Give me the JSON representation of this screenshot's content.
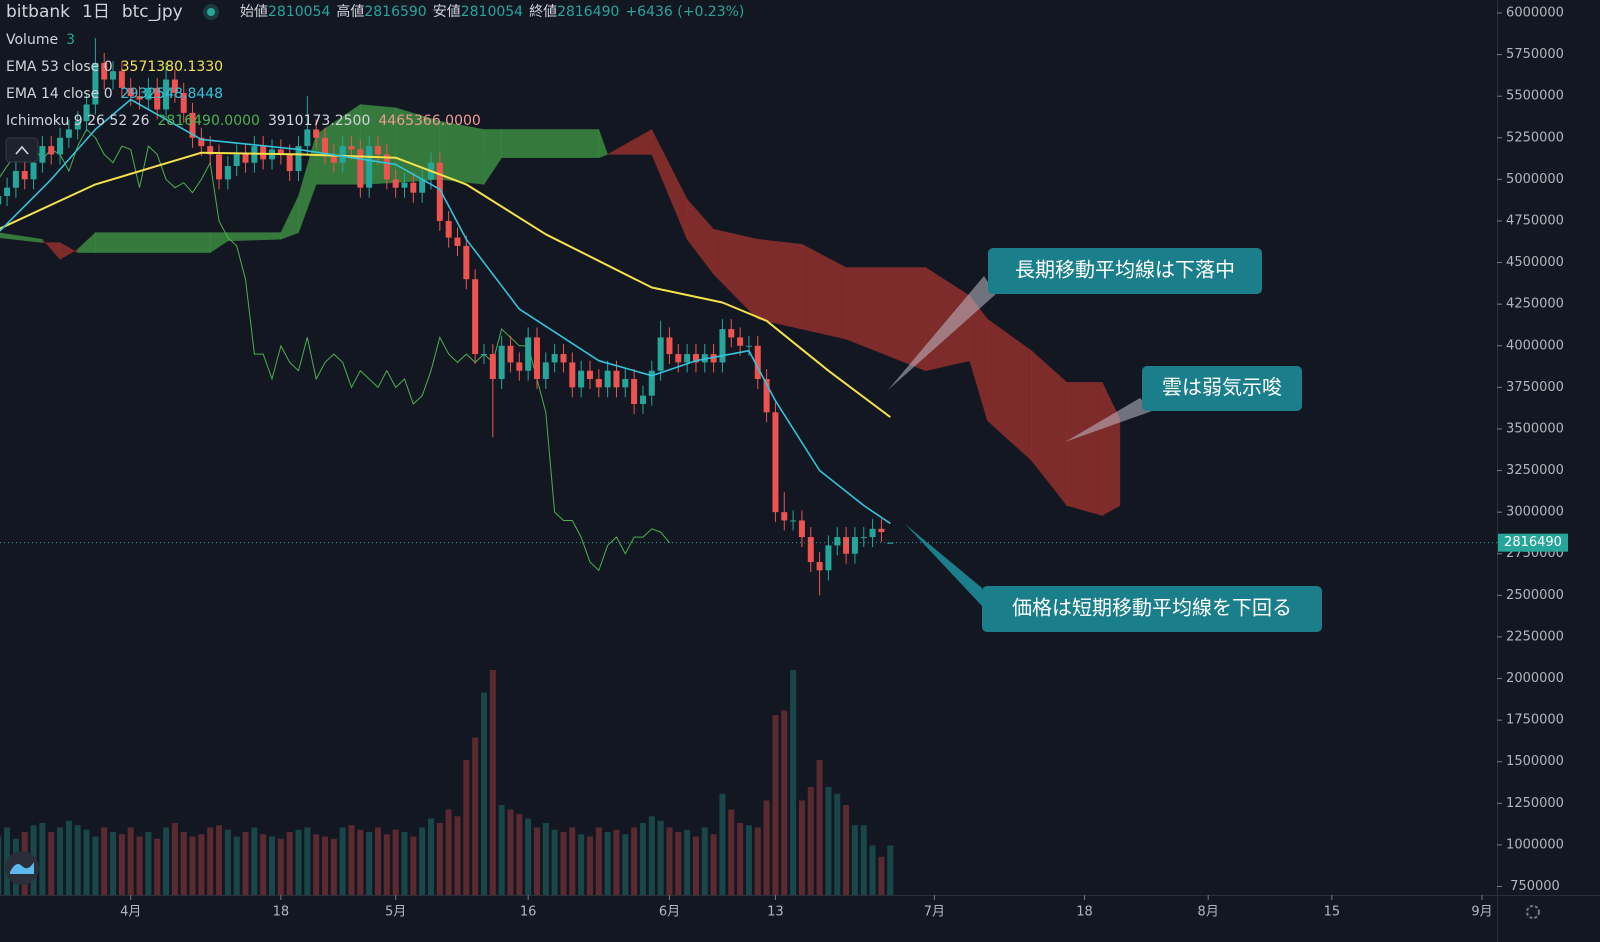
{
  "header": {
    "exchange": "bitbank",
    "interval": "1日",
    "symbol": "btc_jpy",
    "open_label": "始値",
    "high_label": "高値",
    "low_label": "安値",
    "close_label": "終値",
    "change": "+6436 (+0.23%)"
  },
  "chart_data": {
    "type": "candlestick",
    "x": [
      -15,
      -14,
      -13,
      -12,
      -11,
      -10,
      -9,
      -8,
      -7,
      -6,
      -5,
      -4,
      -3,
      -2,
      -1,
      0,
      1,
      2,
      3,
      4,
      5,
      6,
      7,
      8,
      9,
      10,
      11,
      12,
      13,
      14,
      15,
      16,
      17,
      18,
      19,
      20,
      21,
      22,
      23,
      24,
      25,
      26,
      27,
      28,
      29,
      30,
      31,
      32,
      33,
      34,
      35,
      36,
      37,
      38,
      39,
      40,
      41,
      42,
      43,
      44,
      45,
      46,
      47,
      48,
      49,
      50,
      51,
      52,
      53,
      54,
      55,
      56,
      57,
      58,
      59,
      60,
      61,
      62,
      63,
      64,
      65,
      66,
      67,
      68,
      69,
      70,
      71,
      72,
      73,
      74,
      75,
      76,
      77,
      78,
      79,
      80,
      81,
      82,
      83,
      84,
      85,
      86
    ],
    "open": [
      4850000,
      4900000,
      4950000,
      5050000,
      5000000,
      5100000,
      5200000,
      5150000,
      5250000,
      5300000,
      5350000,
      5450000,
      5700000,
      5600000,
      5650000,
      5550000,
      5500000,
      5480000,
      5550000,
      5420000,
      5600000,
      5520000,
      5400000,
      5250000,
      5200000,
      5150000,
      5000000,
      5080000,
      5150000,
      5100000,
      5200000,
      5120000,
      5180000,
      5150000,
      5050000,
      5200000,
      5300000,
      5250000,
      5150000,
      5100000,
      5200000,
      5180000,
      4950000,
      5200000,
      5150000,
      5000000,
      4950000,
      4980000,
      4920000,
      5000000,
      5100000,
      4750000,
      4650000,
      4600000,
      4400000,
      3950000,
      3950000,
      3800000,
      4000000,
      3900000,
      3850000,
      4050000,
      3800000,
      3900000,
      3950000,
      3900000,
      3750000,
      3850000,
      3800000,
      3750000,
      3850000,
      3750000,
      3800000,
      3650000,
      3700000,
      3850000,
      4050000,
      3950000,
      3900000,
      3950000,
      3900000,
      3950000,
      3900000,
      4100000,
      4050000,
      4000000,
      4000000,
      3800000,
      3600000,
      3000000,
      2950000,
      2950000,
      2850000,
      2700000,
      2650000,
      2800000,
      2850000,
      2750000,
      2850000,
      2850000,
      2900000,
      2810054
    ],
    "high": [
      4960000,
      5010000,
      5110000,
      5110000,
      5160000,
      5260000,
      5260000,
      5310000,
      5360000,
      5410000,
      5510000,
      5850000,
      5760000,
      5710000,
      5710000,
      5610000,
      5560000,
      5610000,
      5610000,
      5700000,
      5660000,
      5580000,
      5460000,
      5310000,
      5260000,
      5210000,
      5140000,
      5210000,
      5210000,
      5260000,
      5260000,
      5240000,
      5240000,
      5210000,
      5260000,
      5500000,
      5360000,
      5310000,
      5210000,
      5260000,
      5260000,
      5240000,
      5260000,
      5260000,
      5210000,
      5060000,
      5040000,
      5040000,
      5060000,
      5160000,
      5160000,
      4810000,
      4710000,
      4660000,
      4460000,
      4010000,
      4010000,
      4060000,
      4060000,
      3960000,
      4110000,
      4110000,
      3960000,
      4010000,
      4010000,
      3960000,
      3910000,
      3910000,
      3860000,
      3910000,
      3910000,
      3860000,
      3860000,
      3760000,
      3910000,
      4150000,
      4110000,
      4010000,
      4010000,
      4010000,
      4010000,
      4010000,
      4160000,
      4160000,
      4110000,
      4060000,
      4060000,
      3860000,
      3660000,
      3120000,
      3010000,
      3010000,
      2910000,
      2760000,
      2860000,
      2910000,
      2910000,
      2910000,
      2910000,
      2960000,
      2960000,
      2816590
    ],
    "low": [
      4790000,
      4840000,
      4890000,
      4940000,
      4940000,
      5040000,
      5090000,
      5090000,
      5190000,
      5240000,
      5290000,
      5390000,
      5540000,
      5540000,
      5490000,
      5440000,
      5420000,
      5420000,
      5360000,
      5360000,
      5460000,
      5340000,
      5190000,
      5140000,
      5090000,
      4940000,
      4940000,
      5020000,
      5040000,
      5040000,
      5060000,
      5060000,
      5090000,
      4990000,
      4990000,
      5140000,
      5190000,
      5090000,
      5040000,
      5040000,
      5120000,
      4890000,
      4890000,
      5090000,
      4940000,
      4890000,
      4890000,
      4860000,
      4860000,
      4940000,
      4690000,
      4590000,
      4540000,
      4340000,
      3890000,
      3890000,
      3450000,
      3740000,
      3840000,
      3790000,
      3790000,
      3740000,
      3740000,
      3840000,
      3840000,
      3690000,
      3690000,
      3740000,
      3690000,
      3690000,
      3690000,
      3690000,
      3590000,
      3590000,
      3640000,
      3790000,
      3890000,
      3840000,
      3840000,
      3840000,
      3840000,
      3840000,
      3840000,
      3990000,
      3940000,
      3940000,
      3740000,
      3540000,
      2940000,
      2890000,
      2890000,
      2790000,
      2640000,
      2500000,
      2590000,
      2740000,
      2690000,
      2690000,
      2790000,
      2790000,
      2820000,
      2810054
    ],
    "close": [
      4900000,
      4950000,
      5050000,
      5000000,
      5100000,
      5200000,
      5150000,
      5250000,
      5300000,
      5350000,
      5450000,
      5700000,
      5600000,
      5650000,
      5550000,
      5500000,
      5480000,
      5550000,
      5420000,
      5600000,
      5520000,
      5400000,
      5250000,
      5200000,
      5150000,
      5000000,
      5080000,
      5150000,
      5100000,
      5200000,
      5120000,
      5180000,
      5150000,
      5050000,
      5200000,
      5300000,
      5250000,
      5150000,
      5100000,
      5200000,
      5180000,
      4950000,
      5200000,
      5150000,
      5000000,
      4950000,
      4980000,
      4920000,
      5000000,
      5100000,
      4750000,
      4650000,
      4600000,
      4400000,
      3950000,
      3950000,
      3800000,
      4000000,
      3900000,
      3850000,
      4050000,
      3800000,
      3900000,
      3950000,
      3900000,
      3750000,
      3850000,
      3800000,
      3750000,
      3850000,
      3750000,
      3800000,
      3650000,
      3700000,
      3850000,
      4050000,
      3950000,
      3900000,
      3950000,
      3900000,
      3950000,
      3900000,
      4100000,
      4050000,
      4000000,
      4000000,
      3800000,
      3600000,
      3000000,
      2950000,
      2950000,
      2850000,
      2700000,
      2650000,
      2800000,
      2850000,
      2750000,
      2850000,
      2850000,
      2900000,
      2880000,
      2816490
    ],
    "up_color": "#26a69a",
    "down_color": "#ef5350",
    "volume": {
      "name": "Volume",
      "legend_value": 3,
      "ylim": [
        0,
        1000
      ],
      "values": [
        260,
        300,
        250,
        280,
        310,
        320,
        280,
        300,
        330,
        310,
        290,
        260,
        300,
        280,
        270,
        300,
        260,
        280,
        250,
        300,
        320,
        280,
        260,
        270,
        300,
        310,
        290,
        260,
        280,
        300,
        270,
        260,
        250,
        280,
        290,
        300,
        270,
        260,
        250,
        300,
        310,
        290,
        280,
        300,
        270,
        290,
        280,
        260,
        300,
        340,
        320,
        380,
        350,
        600,
        700,
        900,
        1000,
        400,
        380,
        360,
        340,
        300,
        320,
        290,
        280,
        300,
        270,
        260,
        300,
        280,
        290,
        270,
        300,
        320,
        350,
        330,
        300,
        280,
        290,
        260,
        300,
        270,
        450,
        380,
        320,
        310,
        300,
        420,
        800,
        820,
        1000,
        420,
        480,
        600,
        480,
        450,
        400,
        310,
        310,
        220,
        170,
        220
      ]
    },
    "series": [
      {
        "name": "EMA 53 close 0",
        "color": "#f5e14a",
        "value_label": "3571380.1330",
        "x": [
          -15,
          -4,
          8,
          19,
          30,
          38,
          47,
          59,
          67,
          72,
          79,
          86
        ],
        "values": [
          4700000,
          4970000,
          5160000,
          5150000,
          5130000,
          4970000,
          4670000,
          4350000,
          4260000,
          4150000,
          3850000,
          3571380.133
        ]
      },
      {
        "name": "EMA 14 close 0",
        "color": "#34c3dc",
        "value_label": "2932548.8448",
        "x": [
          -15,
          -9,
          -4,
          0,
          8,
          19,
          30,
          35,
          38,
          44,
          53,
          59,
          64,
          70,
          73,
          78,
          83,
          86
        ],
        "values": [
          4680000,
          5000000,
          5300000,
          5480000,
          5240000,
          5180000,
          5090000,
          4940000,
          4640000,
          4220000,
          3910000,
          3820000,
          3910000,
          3970000,
          3670000,
          3250000,
          3040000,
          2932548.8448
        ]
      }
    ],
    "ichimoku": {
      "name": "Ichimoku 9 26 52 26",
      "lagging_color": "#4caf50",
      "legend_values": [
        {
          "text": "2816490.0000",
          "color": "#4caf50"
        },
        {
          "text": "3910173.2500",
          "color": "#d1d4dc"
        },
        {
          "text": "4465366.0000",
          "color": "#f19a93"
        }
      ],
      "up_color": "#43a047",
      "down_color": "#a8342f",
      "x": [
        -15,
        -10,
        -8,
        -6,
        -4,
        9,
        11,
        17,
        19,
        21,
        26,
        30,
        35,
        40,
        42,
        53,
        54,
        59,
        63,
        66,
        71,
        76,
        81,
        90,
        95,
        97,
        102,
        106,
        110,
        112
      ],
      "span_a": [
        4680000,
        4640000,
        4520000,
        4580000,
        4680000,
        4680000,
        4680000,
        4680000,
        4900000,
        5270000,
        5450000,
        5430000,
        5350000,
        5300000,
        5300000,
        5300000,
        5150000,
        5150000,
        4640000,
        4430000,
        4160000,
        4100000,
        4040000,
        3850000,
        3910000,
        3550000,
        3310000,
        3040000,
        2980000,
        3040000
      ],
      "span_b": [
        4650000,
        4620000,
        4620000,
        4560000,
        4560000,
        4560000,
        4630000,
        4640000,
        4680000,
        4970000,
        4970000,
        4980000,
        5000000,
        4970000,
        5130000,
        5130000,
        5150000,
        5300000,
        4880000,
        4700000,
        4640000,
        4610000,
        4470000,
        4470000,
        4300000,
        4160000,
        3970000,
        3780000,
        3780000,
        3560000
      ]
    },
    "xlim": [
      -14.8,
      154.7
    ],
    "ylim": [
      699000,
      6078000
    ],
    "xticks": [
      {
        "value": 0,
        "label": "4月"
      },
      {
        "value": 17,
        "label": "18"
      },
      {
        "value": 30,
        "label": "5月"
      },
      {
        "value": 45,
        "label": "16"
      },
      {
        "value": 61,
        "label": "6月"
      },
      {
        "value": 73,
        "label": "13"
      },
      {
        "value": 91,
        "label": "7月"
      },
      {
        "value": 108,
        "label": "18"
      },
      {
        "value": 122,
        "label": "8月"
      },
      {
        "value": 136,
        "label": "15"
      },
      {
        "value": 153,
        "label": "9月"
      }
    ],
    "yticks": [
      750000,
      1000000,
      1250000,
      1500000,
      1750000,
      2000000,
      2250000,
      2500000,
      2750000,
      3000000,
      3250000,
      3500000,
      3750000,
      4000000,
      4250000,
      4500000,
      4750000,
      5000000,
      5250000,
      5500000,
      5750000,
      6000000
    ],
    "grid": false,
    "annotations": [
      {
        "text": "長期移動平均線は下落中"
      },
      {
        "text": "雲は弱気示唆"
      },
      {
        "text": "価格は短期移動平均線を下回る"
      }
    ]
  }
}
